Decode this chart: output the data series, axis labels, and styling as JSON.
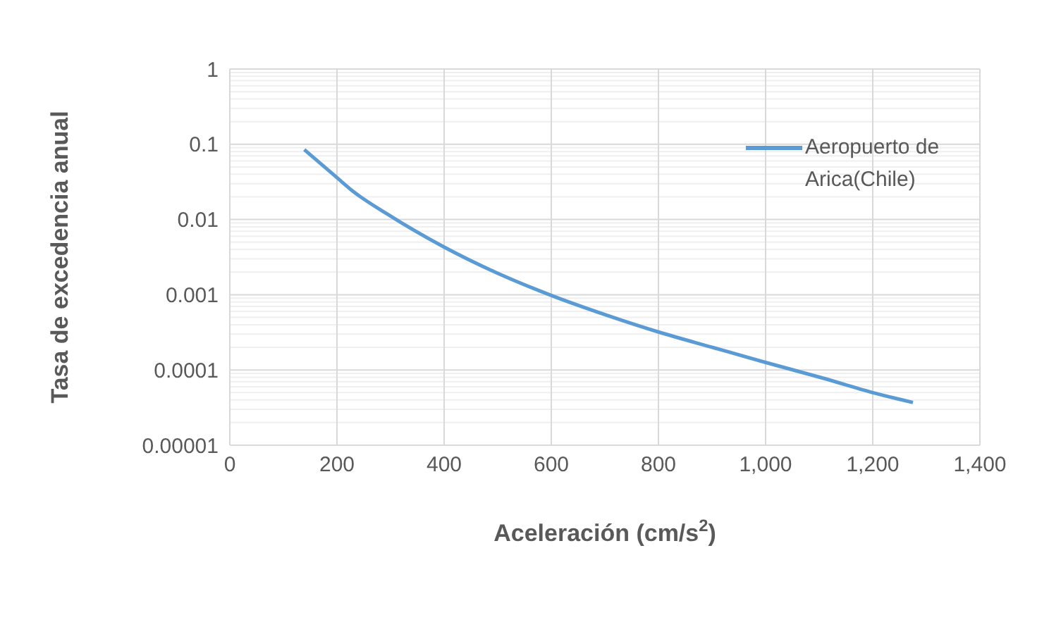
{
  "chart_data": {
    "type": "line",
    "xlabel": "Aceleración (cm/s$^{2}$)",
    "ylabel": "Tasa de excedencia anual",
    "log": "y",
    "grid": true,
    "legend": "top right",
    "marker": "none",
    "line_style": "solid",
    "xlim": [
      0,
      1400
    ],
    "xticks": [
      0,
      200,
      400,
      600,
      800,
      {
        "value": 1000,
        "label": "1,000"
      },
      {
        "value": 1200,
        "label": "1,200"
      },
      {
        "value": 1400,
        "label": "1,400"
      }
    ],
    "ylim": [
      1e-05,
      1
    ],
    "yticks": [
      {
        "value": 1e-05,
        "label": "0.00001"
      },
      0.0001,
      0.001,
      0.01,
      0.1,
      1
    ],
    "series": [
      {
        "name": "Aeropuerto de Arica(Chile)",
        "color": "#5b9bd5",
        "x": [
          139,
          200,
          229,
          294,
          400,
          495,
          600,
          705,
          800,
          906,
          1000,
          1107,
          1200,
          1275
        ],
        "values": [
          0.085,
          0.036,
          0.024,
          0.0118,
          0.0043,
          0.002,
          0.00098,
          0.00053,
          0.00032,
          0.000195,
          0.000126,
          7.8e-05,
          5e-05,
          3.7e-05
        ]
      }
    ]
  }
}
